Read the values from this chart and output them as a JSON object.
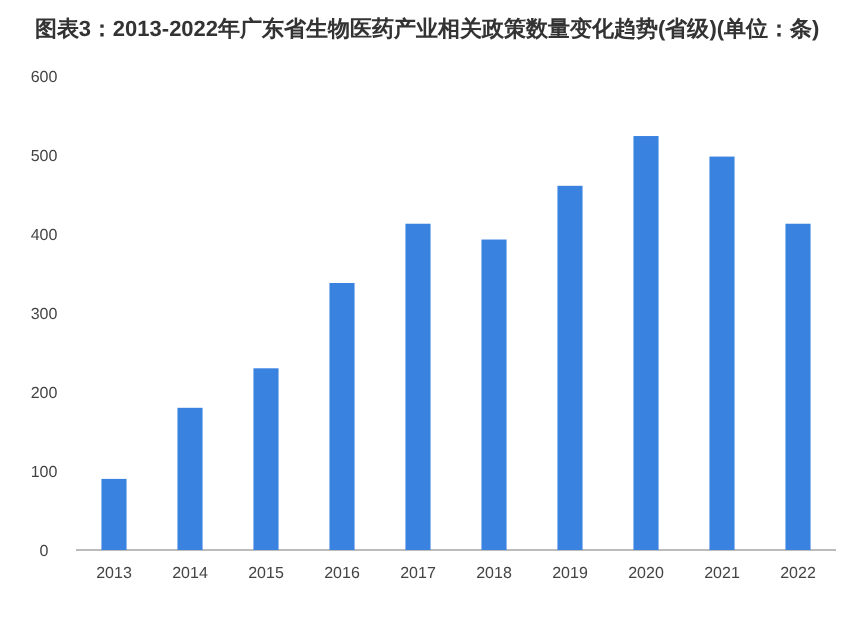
{
  "chart_data": {
    "type": "bar",
    "title": "图表3：2013-2022年广东省生物医药产业相关政策数量变化趋势(省级)(单位：条)",
    "categories": [
      "2013",
      "2014",
      "2015",
      "2016",
      "2017",
      "2018",
      "2019",
      "2020",
      "2021",
      "2022"
    ],
    "values": [
      90,
      180,
      230,
      338,
      413,
      393,
      461,
      524,
      498,
      413
    ],
    "color": "#3a82e0",
    "ylim": [
      0,
      600
    ],
    "yticks": [
      0,
      100,
      200,
      300,
      400,
      500,
      600
    ],
    "grid": false
  }
}
